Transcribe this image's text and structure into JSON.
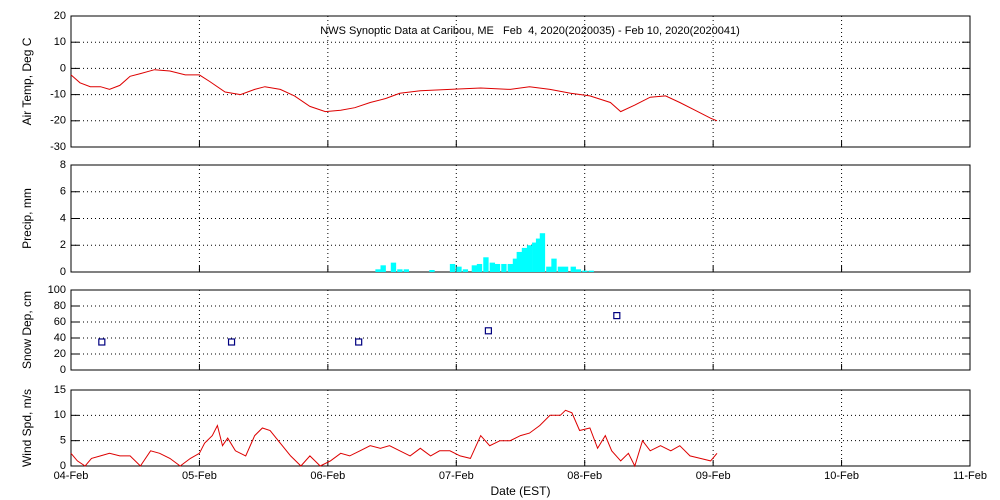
{
  "chart_data": [
    {
      "type": "line",
      "title": "NWS Synoptic Data at Caribou, ME   Feb  4, 2020(2020035) - Feb 10, 2020(2020041)",
      "ylabel": "Air Temp, Deg C",
      "grid": true,
      "xlim": [
        0,
        7
      ],
      "xticks": [
        0,
        1,
        2,
        3,
        4,
        5,
        6,
        7
      ],
      "ylim": [
        -30,
        20
      ],
      "yticks": [
        -30,
        -20,
        -10,
        0,
        10,
        20
      ],
      "series": [
        {
          "color": "#dd0000",
          "x": [
            0,
            0.07,
            0.15,
            0.23,
            0.3,
            0.38,
            0.46,
            0.54,
            0.65,
            0.77,
            0.89,
            1.0,
            1.08,
            1.2,
            1.32,
            1.43,
            1.51,
            1.63,
            1.74,
            1.86,
            1.98,
            2.1,
            2.21,
            2.33,
            2.45,
            2.56,
            2.72,
            2.95,
            3.19,
            3.42,
            3.57,
            3.73,
            3.89,
            4.04,
            4.2,
            4.28,
            4.39,
            4.51,
            4.63,
            4.74,
            4.86,
            4.98,
            5.03
          ],
          "values": [
            -2.5,
            -5.5,
            -7,
            -7,
            -8,
            -6.5,
            -3,
            -2,
            -0.5,
            -1,
            -2.5,
            -2.5,
            -5,
            -9,
            -10,
            -8,
            -7,
            -8,
            -10.5,
            -14.5,
            -16.5,
            -16,
            -15,
            -13,
            -11.5,
            -9.5,
            -8.5,
            -8,
            -7.5,
            -8,
            -7,
            -8,
            -9.5,
            -10.5,
            -13,
            -16.5,
            -14,
            -11,
            -10.5,
            -13,
            -16,
            -19,
            -20
          ]
        }
      ]
    },
    {
      "type": "bar",
      "ylabel": "Precip, mm",
      "grid": true,
      "xlim": [
        0,
        7
      ],
      "xticks": [
        0,
        1,
        2,
        3,
        4,
        5,
        6,
        7
      ],
      "ylim": [
        0,
        8
      ],
      "yticks": [
        0,
        2,
        4,
        6,
        8
      ],
      "color": "#00ffff",
      "x": [
        2.37,
        2.41,
        2.49,
        2.54,
        2.59,
        2.79,
        2.95,
        3.0,
        3.05,
        3.12,
        3.16,
        3.21,
        3.26,
        3.3,
        3.35,
        3.4,
        3.44,
        3.47,
        3.51,
        3.55,
        3.59,
        3.62,
        3.65,
        3.7,
        3.74,
        3.79,
        3.83,
        3.89,
        3.93,
        3.98,
        4.03
      ],
      "values": [
        0.2,
        0.5,
        0.7,
        0.2,
        0.2,
        0.15,
        0.6,
        0.4,
        0.2,
        0.5,
        0.6,
        1.1,
        0.7,
        0.6,
        0.6,
        0.6,
        1.0,
        1.5,
        1.8,
        2.0,
        2.2,
        2.5,
        2.9,
        0.4,
        1.0,
        0.4,
        0.4,
        0.4,
        0.2,
        0.1,
        0.1
      ]
    },
    {
      "type": "scatter",
      "ylabel": "Snow Dep, cm",
      "grid": true,
      "xlim": [
        0,
        7
      ],
      "xticks": [
        0,
        1,
        2,
        3,
        4,
        5,
        6,
        7
      ],
      "ylim": [
        0,
        100
      ],
      "yticks": [
        0,
        20,
        40,
        60,
        80,
        100
      ],
      "color": "#000080",
      "x": [
        0.24,
        1.25,
        2.24,
        3.25,
        4.25
      ],
      "values": [
        35,
        35,
        35,
        49,
        68
      ]
    },
    {
      "type": "line",
      "ylabel": "Wind Spd, m/s",
      "xlabel": "Date (EST)",
      "grid": true,
      "xlim": [
        0,
        7
      ],
      "xticks": [
        {
          "value": 0,
          "label": "04-Feb"
        },
        {
          "value": 1,
          "label": "05-Feb"
        },
        {
          "value": 2,
          "label": "06-Feb"
        },
        {
          "value": 3,
          "label": "07-Feb"
        },
        {
          "value": 4,
          "label": "08-Feb"
        },
        {
          "value": 5,
          "label": "09-Feb"
        },
        {
          "value": 6,
          "label": "10-Feb"
        },
        {
          "value": 7,
          "label": "11-Feb"
        }
      ],
      "ylim": [
        0,
        15
      ],
      "yticks": [
        0,
        5,
        10,
        15
      ],
      "series": [
        {
          "color": "#dd0000",
          "x": [
            0,
            0.05,
            0.11,
            0.16,
            0.23,
            0.3,
            0.38,
            0.46,
            0.54,
            0.62,
            0.69,
            0.77,
            0.85,
            0.93,
            1.0,
            1.04,
            1.1,
            1.14,
            1.18,
            1.22,
            1.28,
            1.36,
            1.43,
            1.49,
            1.55,
            1.63,
            1.71,
            1.79,
            1.86,
            1.94,
            2.02,
            2.1,
            2.17,
            2.25,
            2.33,
            2.41,
            2.48,
            2.56,
            2.64,
            2.72,
            2.8,
            2.87,
            2.95,
            3.03,
            3.11,
            3.19,
            3.26,
            3.34,
            3.42,
            3.5,
            3.57,
            3.65,
            3.73,
            3.81,
            3.85,
            3.9,
            3.96,
            4.04,
            4.1,
            4.16,
            4.21,
            4.28,
            4.34,
            4.39,
            4.45,
            4.51,
            4.59,
            4.67,
            4.74,
            4.82,
            4.9,
            4.98,
            5.03
          ],
          "values": [
            2.5,
            1,
            0,
            1.5,
            2,
            2.5,
            2,
            2,
            0,
            3,
            2.5,
            1.5,
            0,
            1.5,
            2.5,
            4.5,
            6,
            8,
            4,
            5.5,
            3,
            2,
            6,
            7.5,
            7,
            4.5,
            2,
            0,
            2,
            0,
            1,
            2.5,
            2,
            3,
            4,
            3.5,
            4,
            3,
            2,
            3.5,
            2,
            3,
            3,
            2,
            1.5,
            6,
            4,
            5,
            5,
            6,
            6.5,
            8,
            10,
            10,
            11,
            10.5,
            7,
            7.5,
            3.5,
            6,
            3,
            1,
            2.5,
            0,
            5,
            3,
            4,
            3,
            4,
            2,
            1.5,
            1,
            2.5
          ]
        }
      ]
    }
  ]
}
